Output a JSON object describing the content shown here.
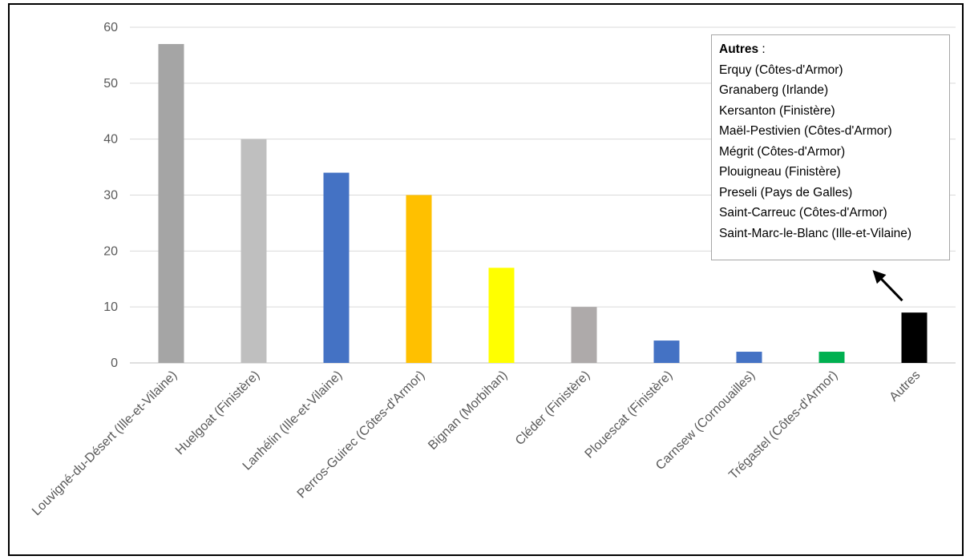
{
  "chart_data": {
    "type": "bar",
    "title": "",
    "xlabel": "",
    "ylabel": "",
    "ylim": [
      0,
      60
    ],
    "yticks": [
      "0",
      "10",
      "20",
      "30",
      "40",
      "50",
      "60"
    ],
    "grid": true,
    "categories": [
      "Louvigné-du-Désert (Ille-et-Vilaine)",
      "Huelgoat (Finistère)",
      "Lanhélin (Ille-et-Vilaine)",
      "Perros-Guirec (Côtes-d'Armor)",
      "Bignan (Morbihan)",
      "Cléder (Finistère)",
      "Plouescat (Finistère)",
      "Carnsew (Cornouailles)",
      "Trégastel (Côtes-d'Armor)",
      "Autres"
    ],
    "values": [
      57,
      40,
      34,
      30,
      17,
      10,
      4,
      2,
      2,
      9
    ],
    "colors": [
      "#a5a5a5",
      "#bfbfbf",
      "#4472c4",
      "#ffc000",
      "#ffff00",
      "#aeaaaa",
      "#4472c4",
      "#4472c4",
      "#00b050",
      "#000000"
    ],
    "annotation": {
      "title": "Autres",
      "title_suffix": " :",
      "items": [
        "Erquy (Côtes-d'Armor)",
        "Granaberg (Irlande)",
        "Kersanton (Finistère)",
        "Maël-Pestivien (Côtes-d'Armor)",
        "Mégrit (Côtes-d'Armor)",
        "Plouigneau (Finistère)",
        "Preseli (Pays de Galles)",
        "Saint-Carreuc (Côtes-d'Armor)",
        "Saint-Marc-le-Blanc (Ille-et-Vilaine)"
      ],
      "points_to": "Autres"
    }
  }
}
